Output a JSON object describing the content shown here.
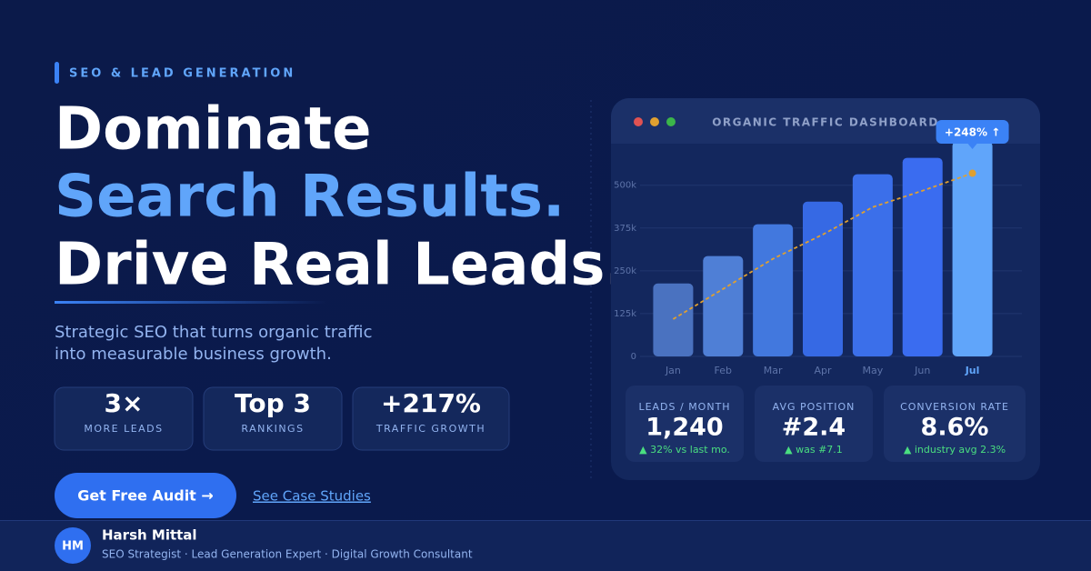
{
  "eyebrow": "SEO & LEAD GENERATION",
  "headline": [
    "Dominate",
    "Search Results.",
    "Drive Real Leads."
  ],
  "subtitle": [
    "Strategic SEO that turns organic traffic",
    "into measurable business growth."
  ],
  "stats": [
    {
      "value": "3×",
      "label": "MORE LEADS"
    },
    {
      "value": "Top 3",
      "label": "RANKINGS"
    },
    {
      "value": "+217%",
      "label": "TRAFFIC GROWTH"
    }
  ],
  "buttons": {
    "primary": "Get Free Audit →",
    "secondary": "See Case Studies"
  },
  "author": {
    "initials": "HM",
    "name": "Harsh Mittal",
    "role": "SEO Strategist · Lead Generation Expert · Digital Growth Consultant"
  },
  "kpis": [
    {
      "label": "LEADS / MONTH",
      "value": "1,240",
      "note": "▲ 32% vs last mo."
    },
    {
      "label": "AVG POSITION",
      "value": "#2.4",
      "note": "▲ was #7.1"
    },
    {
      "label": "CONVERSION RATE",
      "value": "8.6%",
      "note": "▲ industry avg 2.3%"
    }
  ],
  "chart_data": {
    "type": "bar",
    "title": "ORGANIC TRAFFIC DASHBOARD",
    "annotation": "+248% ↑",
    "categories": [
      "Jan",
      "Feb",
      "Mar",
      "Apr",
      "May",
      "Jun",
      "Jul"
    ],
    "series": [
      {
        "type": "bar",
        "colors": [
          "#4a72c0",
          "#4f7fd6",
          "#4278de",
          "#3669e4",
          "#3b6fea",
          "#3a6cf0",
          "#60a5fa"
        ],
        "values": [
          213000,
          293000,
          386000,
          452000,
          532000,
          580000,
          628000
        ]
      },
      {
        "type": "line",
        "color": "#e0a030",
        "values": [
          109000,
          197000,
          285000,
          356000,
          436000,
          484000,
          535000
        ]
      }
    ],
    "ylim": [
      0,
      640000
    ],
    "yticks": [
      0,
      {
        "value": 125000,
        "label": "125k"
      },
      {
        "value": 250000,
        "label": "250k"
      },
      {
        "value": 375000,
        "label": "375k"
      },
      {
        "value": 500000,
        "label": "500k"
      }
    ],
    "grid": true
  }
}
